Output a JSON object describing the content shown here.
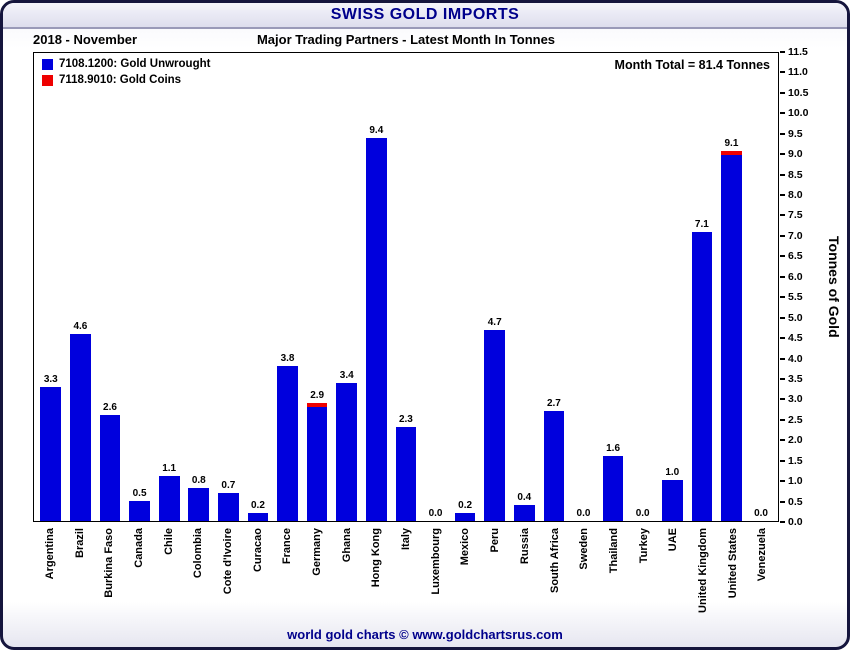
{
  "header": {
    "title": "SWISS GOLD IMPORTS",
    "date": "2018 - November",
    "subtitle": "Major Trading Partners - Latest Month In Tonnes"
  },
  "annotations": {
    "month_total": "Month Total = 81.4 Tonnes"
  },
  "footer": {
    "credit": "world gold charts © www.goldchartsrus.com"
  },
  "colors": {
    "unwrought_blue": "#0000DD",
    "coins_red": "#EE0000",
    "title_navy": "#00008B"
  },
  "chart_data": {
    "type": "bar",
    "stacked": true,
    "title": "SWISS GOLD IMPORTS",
    "subtitle": "Major Trading Partners - Latest Month In Tonnes",
    "ylabel": "Tonnes of Gold",
    "ylim": [
      0,
      11.5
    ],
    "ytick_step": 0.5,
    "grid": false,
    "legend_position": "top-left",
    "y_ticks": [
      "0.0",
      "0.5",
      "1.0",
      "1.5",
      "2.0",
      "2.5",
      "3.0",
      "3.5",
      "4.0",
      "4.5",
      "5.0",
      "5.5",
      "6.0",
      "6.5",
      "7.0",
      "7.5",
      "8.0",
      "8.5",
      "9.0",
      "9.5",
      "10.0",
      "10.5",
      "11.0",
      "11.5"
    ],
    "categories": [
      "Argentina",
      "Brazil",
      "Burkina Faso",
      "Canada",
      "Chile",
      "Colombia",
      "Cote d'Ivoire",
      "Curacao",
      "France",
      "Germany",
      "Ghana",
      "Hong Kong",
      "Italy",
      "Luxembourg",
      "Mexico",
      "Peru",
      "Russia",
      "South Africa",
      "Sweden",
      "Thailand",
      "Turkey",
      "UAE",
      "United Kingdom",
      "United States",
      "Venezuela"
    ],
    "series": [
      {
        "name": "7108.1200: Gold Unwrought",
        "color": "#0000DD",
        "values": [
          3.3,
          4.6,
          2.6,
          0.5,
          1.1,
          0.8,
          0.7,
          0.2,
          3.8,
          2.8,
          3.4,
          9.4,
          2.3,
          0.0,
          0.2,
          4.7,
          0.4,
          2.7,
          0.0,
          1.6,
          0.0,
          1.0,
          7.1,
          9.0,
          0.0
        ]
      },
      {
        "name": "7118.9010: Gold Coins",
        "color": "#EE0000",
        "values": [
          0,
          0,
          0,
          0,
          0,
          0,
          0,
          0,
          0,
          0.1,
          0,
          0,
          0,
          0,
          0,
          0,
          0,
          0,
          0,
          0,
          0,
          0,
          0,
          0.1,
          0
        ]
      }
    ],
    "bar_labels": [
      "3.3",
      "4.6",
      "2.6",
      "0.5",
      "1.1",
      "0.8",
      "0.7",
      "0.2",
      "3.8",
      "2.9",
      "3.4",
      "9.4",
      "2.3",
      "0.0",
      "0.2",
      "4.7",
      "0.4",
      "2.7",
      "0.0",
      "1.6",
      "0.0",
      "1.0",
      "7.1",
      "9.1",
      "0.0"
    ]
  }
}
